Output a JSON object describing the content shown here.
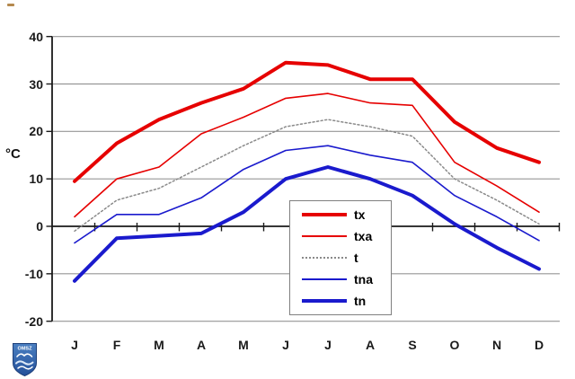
{
  "ui": {
    "logo_text": "OMSZ"
  },
  "chart_data": {
    "type": "line",
    "title": "",
    "xlabel": "",
    "ylabel": "°C",
    "ylim": [
      -20,
      40
    ],
    "yticks": [
      40,
      30,
      20,
      10,
      0,
      -10,
      -20
    ],
    "grid": "horizontal",
    "legend_position": "inside-bottom-center",
    "categories": [
      "J",
      "F",
      "M",
      "A",
      "M",
      "J",
      "J",
      "A",
      "S",
      "O",
      "N",
      "D"
    ],
    "series": [
      {
        "name": "tx",
        "color": "#e60000",
        "style": "solid",
        "thickness": "thick",
        "values": [
          9.5,
          17.5,
          22.5,
          26,
          29,
          34.5,
          34,
          31,
          31,
          22,
          16.5,
          13.5
        ]
      },
      {
        "name": "txa",
        "color": "#e60000",
        "style": "solid",
        "thickness": "thin",
        "values": [
          2,
          10,
          12.5,
          19.5,
          23,
          27,
          28,
          26,
          25.5,
          13.5,
          8.5,
          3
        ]
      },
      {
        "name": "t",
        "color": "#8a8a8a",
        "style": "dotted",
        "thickness": "thin",
        "values": [
          -1,
          5.5,
          8,
          12.5,
          17,
          21,
          22.5,
          21,
          19,
          10,
          5.5,
          0.5
        ]
      },
      {
        "name": "tna",
        "color": "#1a1acd",
        "style": "solid",
        "thickness": "thin",
        "values": [
          -3.5,
          2.5,
          2.5,
          6,
          12,
          16,
          17,
          15,
          13.5,
          6.5,
          2,
          -3
        ]
      },
      {
        "name": "tn",
        "color": "#1a1acd",
        "style": "solid",
        "thickness": "thick",
        "values": [
          -11.5,
          -2.5,
          -2,
          -1.5,
          3,
          10,
          12.5,
          10,
          6.5,
          0.5,
          -4.5,
          -9
        ]
      }
    ],
    "colors": {
      "red": "#e60000",
      "blue": "#1a1acd",
      "gray_dotted": "#8a8a8a",
      "gridline": "#969696",
      "axis": "#1a1a1a"
    }
  }
}
